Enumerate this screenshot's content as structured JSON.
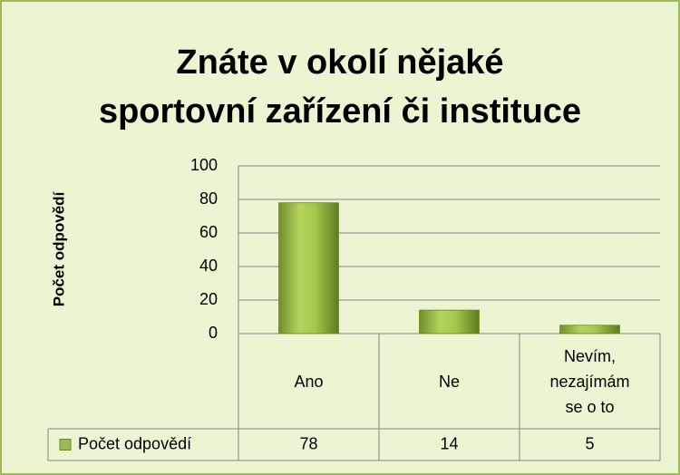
{
  "chart_data": {
    "type": "bar",
    "title": "Znáte v okolí nějaké\nsportovní zařízení či instituce",
    "y_label": "Počet odpovědí",
    "categories": [
      "Ano",
      "Ne",
      "Nevím, nezajímám se o to"
    ],
    "series": [
      {
        "name": "Počet odpovědí",
        "color": "#9bbb59",
        "values": [
          78,
          14,
          5
        ]
      }
    ],
    "ylim": [
      0,
      100
    ],
    "yticks": [
      0,
      20,
      40,
      60,
      80,
      100
    ],
    "grid": true,
    "data_table": true
  }
}
